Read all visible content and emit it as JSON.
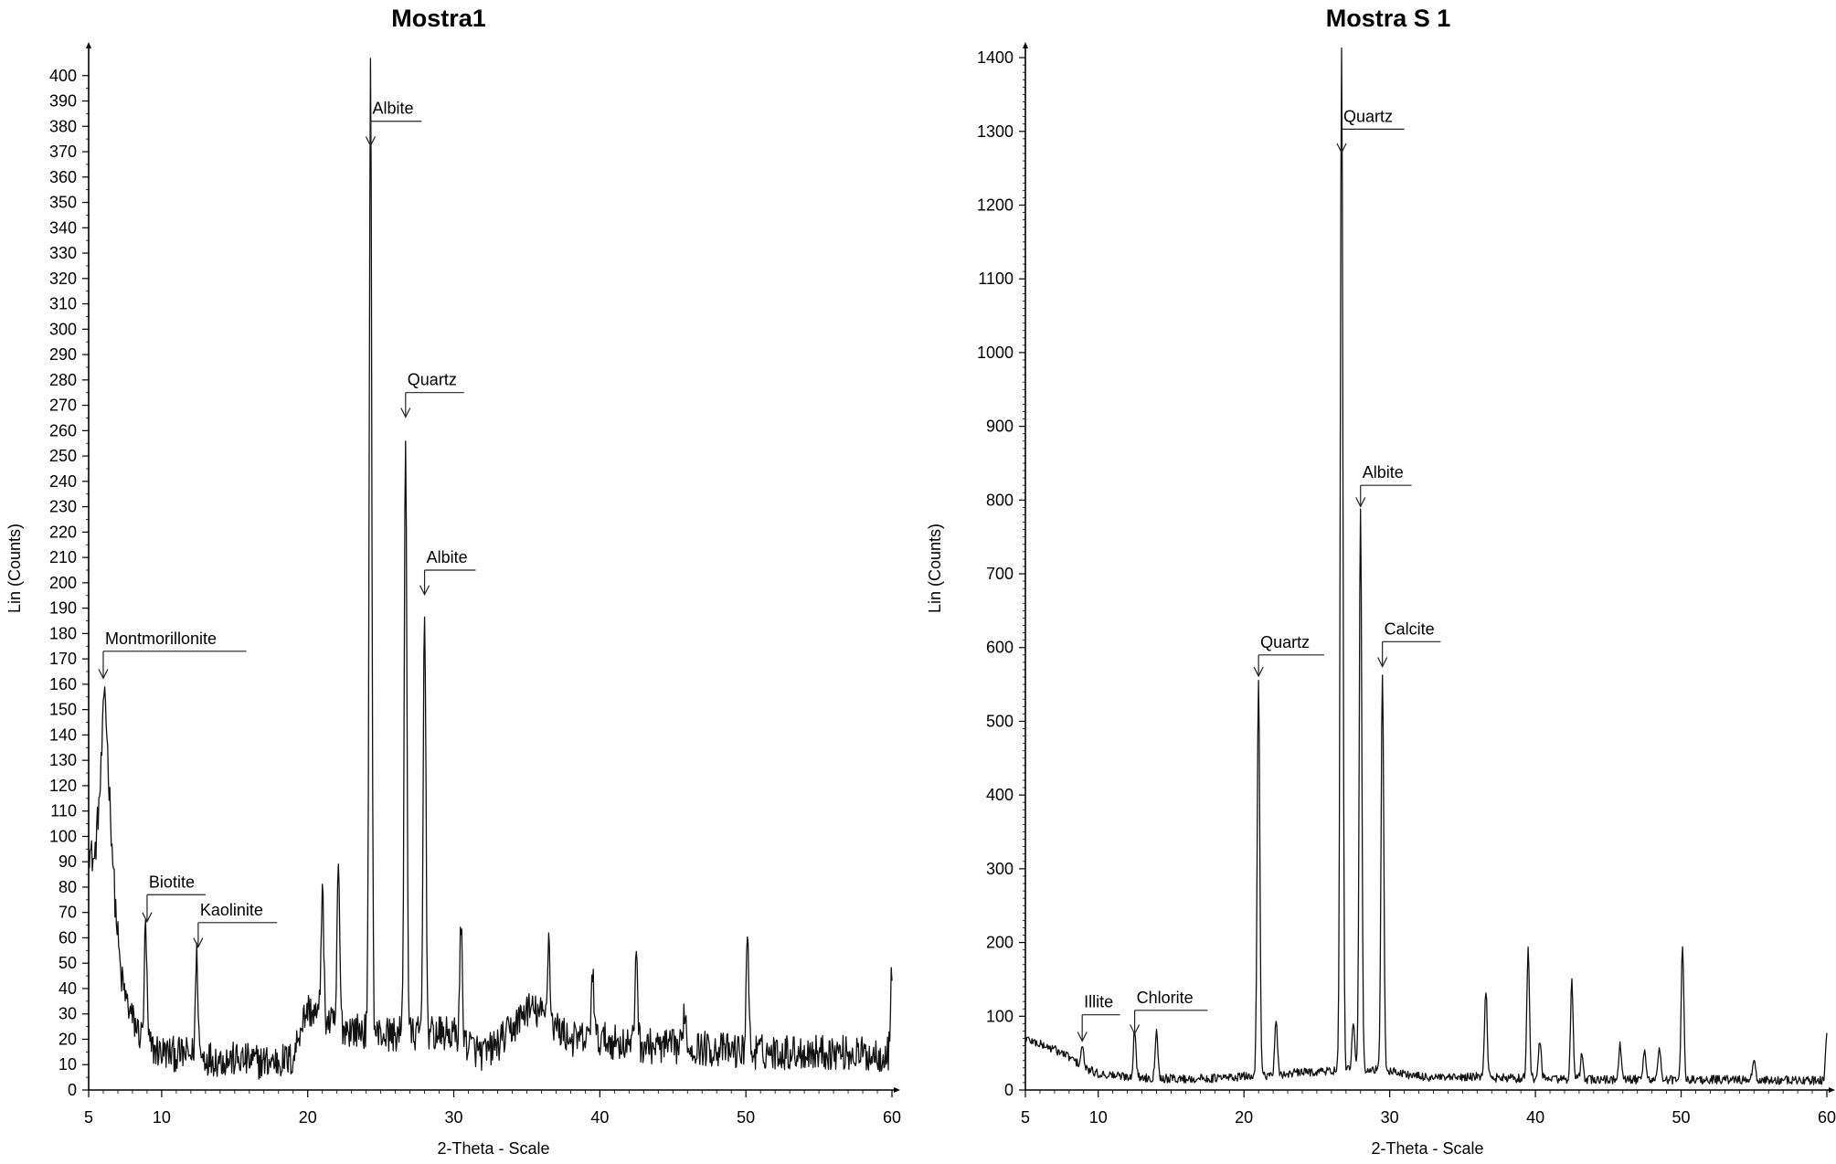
{
  "chart_data": [
    {
      "type": "line",
      "title": "Mostra1",
      "xlabel": "2-Theta - Scale",
      "ylabel": "Lin (Counts)",
      "xlim": [
        5,
        60
      ],
      "ylim": [
        0,
        410
      ],
      "x_ticks": [
        5,
        10,
        20,
        30,
        40,
        50,
        60
      ],
      "y_ticks": [
        0,
        10,
        20,
        30,
        40,
        50,
        60,
        70,
        80,
        90,
        100,
        110,
        120,
        130,
        140,
        150,
        160,
        170,
        180,
        190,
        200,
        210,
        220,
        230,
        240,
        250,
        260,
        270,
        280,
        290,
        300,
        310,
        320,
        330,
        340,
        350,
        360,
        370,
        380,
        390,
        400
      ],
      "background": {
        "points": [
          [
            5,
            95
          ],
          [
            5.4,
            90
          ],
          [
            5.8,
            120
          ],
          [
            6.1,
            160
          ],
          [
            6.4,
            120
          ],
          [
            6.8,
            75
          ],
          [
            7.2,
            45
          ],
          [
            7.6,
            35
          ],
          [
            8,
            28
          ],
          [
            8.5,
            22
          ],
          [
            9,
            18
          ],
          [
            9.5,
            16
          ],
          [
            10,
            15
          ],
          [
            11,
            14
          ],
          [
            12,
            14
          ],
          [
            13,
            13
          ],
          [
            14,
            12
          ],
          [
            15,
            12
          ],
          [
            17,
            11
          ],
          [
            19,
            12
          ],
          [
            19.5,
            25
          ],
          [
            20,
            32
          ],
          [
            21,
            28
          ],
          [
            22,
            25
          ],
          [
            23,
            24
          ],
          [
            24,
            23
          ],
          [
            25,
            22
          ],
          [
            26,
            22
          ],
          [
            27,
            22
          ],
          [
            28,
            22
          ],
          [
            29,
            22
          ],
          [
            30,
            22
          ],
          [
            31,
            18
          ],
          [
            32,
            14
          ],
          [
            33,
            18
          ],
          [
            34,
            24
          ],
          [
            35,
            32
          ],
          [
            36,
            30
          ],
          [
            37,
            25
          ],
          [
            38,
            20
          ],
          [
            39,
            20
          ],
          [
            40,
            20
          ],
          [
            42,
            18
          ],
          [
            44,
            17
          ],
          [
            46,
            17
          ],
          [
            48,
            16
          ],
          [
            50,
            15
          ],
          [
            52,
            15
          ],
          [
            54,
            15
          ],
          [
            56,
            15
          ],
          [
            58,
            14
          ],
          [
            60,
            14
          ]
        ],
        "noise": 7
      },
      "peaks": [
        {
          "x": 8.9,
          "y": 63
        },
        {
          "x": 12.4,
          "y": 53
        },
        {
          "x": 21.0,
          "y": 80
        },
        {
          "x": 22.1,
          "y": 87
        },
        {
          "x": 24.3,
          "y": 410
        },
        {
          "x": 26.7,
          "y": 260
        },
        {
          "x": 28.0,
          "y": 193
        },
        {
          "x": 30.5,
          "y": 64
        },
        {
          "x": 36.5,
          "y": 60
        },
        {
          "x": 39.5,
          "y": 48
        },
        {
          "x": 42.5,
          "y": 57
        },
        {
          "x": 45.8,
          "y": 33
        },
        {
          "x": 50.1,
          "y": 62
        },
        {
          "x": 60.0,
          "y": 49
        }
      ],
      "annotations": [
        {
          "label": "Montmorillonite",
          "x": 6.0,
          "y": 162,
          "line_end_x": 15.8,
          "line_y": 173
        },
        {
          "label": "Biotite",
          "x": 9.0,
          "y": 66,
          "line_end_x": 13.0,
          "line_y": 77
        },
        {
          "label": "Kaolinite",
          "x": 12.5,
          "y": 56,
          "line_end_x": 17.9,
          "line_y": 66
        },
        {
          "label": "Albite",
          "x": 24.3,
          "y": 372,
          "line_end_x": 27.8,
          "line_y": 382
        },
        {
          "label": "Quartz",
          "x": 26.7,
          "y": 265,
          "line_end_x": 30.7,
          "line_y": 275
        },
        {
          "label": "Albite",
          "x": 28.0,
          "y": 195,
          "line_end_x": 31.5,
          "line_y": 205
        }
      ]
    },
    {
      "type": "line",
      "title": "Mostra S 1",
      "xlabel": "2-Theta - Scale",
      "ylabel": "Lin (Counts)",
      "xlim": [
        5,
        60
      ],
      "ylim": [
        0,
        1410
      ],
      "x_ticks": [
        5,
        10,
        20,
        30,
        40,
        50,
        60
      ],
      "y_ticks": [
        0,
        100,
        200,
        300,
        400,
        500,
        600,
        700,
        800,
        900,
        1000,
        1100,
        1200,
        1300,
        1400
      ],
      "background": {
        "points": [
          [
            5,
            70
          ],
          [
            6,
            62
          ],
          [
            7,
            55
          ],
          [
            8,
            45
          ],
          [
            9,
            30
          ],
          [
            10,
            22
          ],
          [
            12,
            18
          ],
          [
            14,
            16
          ],
          [
            16,
            15
          ],
          [
            18,
            16
          ],
          [
            20,
            18
          ],
          [
            22,
            20
          ],
          [
            24,
            24
          ],
          [
            26,
            26
          ],
          [
            28,
            28
          ],
          [
            30,
            26
          ],
          [
            32,
            18
          ],
          [
            34,
            16
          ],
          [
            36,
            18
          ],
          [
            38,
            16
          ],
          [
            40,
            16
          ],
          [
            42,
            15
          ],
          [
            44,
            14
          ],
          [
            46,
            14
          ],
          [
            48,
            14
          ],
          [
            50,
            14
          ],
          [
            52,
            14
          ],
          [
            54,
            14
          ],
          [
            56,
            13
          ],
          [
            58,
            13
          ],
          [
            60,
            13
          ]
        ],
        "noise": 6
      },
      "peaks": [
        {
          "x": 8.9,
          "y": 60
        },
        {
          "x": 12.5,
          "y": 82
        },
        {
          "x": 14.0,
          "y": 85
        },
        {
          "x": 21.0,
          "y": 555
        },
        {
          "x": 22.2,
          "y": 92
        },
        {
          "x": 26.7,
          "y": 1415
        },
        {
          "x": 27.5,
          "y": 90
        },
        {
          "x": 28.0,
          "y": 785
        },
        {
          "x": 29.5,
          "y": 567
        },
        {
          "x": 36.6,
          "y": 135
        },
        {
          "x": 39.5,
          "y": 190
        },
        {
          "x": 40.3,
          "y": 68
        },
        {
          "x": 42.5,
          "y": 145
        },
        {
          "x": 43.2,
          "y": 50
        },
        {
          "x": 45.8,
          "y": 60
        },
        {
          "x": 47.5,
          "y": 58
        },
        {
          "x": 48.5,
          "y": 60
        },
        {
          "x": 50.1,
          "y": 195
        },
        {
          "x": 55.0,
          "y": 40
        },
        {
          "x": 60.0,
          "y": 75
        }
      ],
      "annotations": [
        {
          "label": "Illite",
          "x": 8.9,
          "y": 65,
          "line_end_x": 11.5,
          "line_y": 102
        },
        {
          "label": "Chlorite",
          "x": 12.5,
          "y": 75,
          "line_end_x": 17.5,
          "line_y": 108
        },
        {
          "label": "Quartz",
          "x": 21.0,
          "y": 560,
          "line_end_x": 25.5,
          "line_y": 590
        },
        {
          "label": "Quartz",
          "x": 26.7,
          "y": 1270,
          "line_end_x": 31.0,
          "line_y": 1303
        },
        {
          "label": "Albite",
          "x": 28.0,
          "y": 790,
          "line_end_x": 31.5,
          "line_y": 820
        },
        {
          "label": "Calcite",
          "x": 29.5,
          "y": 573,
          "line_end_x": 33.5,
          "line_y": 608
        }
      ]
    }
  ]
}
